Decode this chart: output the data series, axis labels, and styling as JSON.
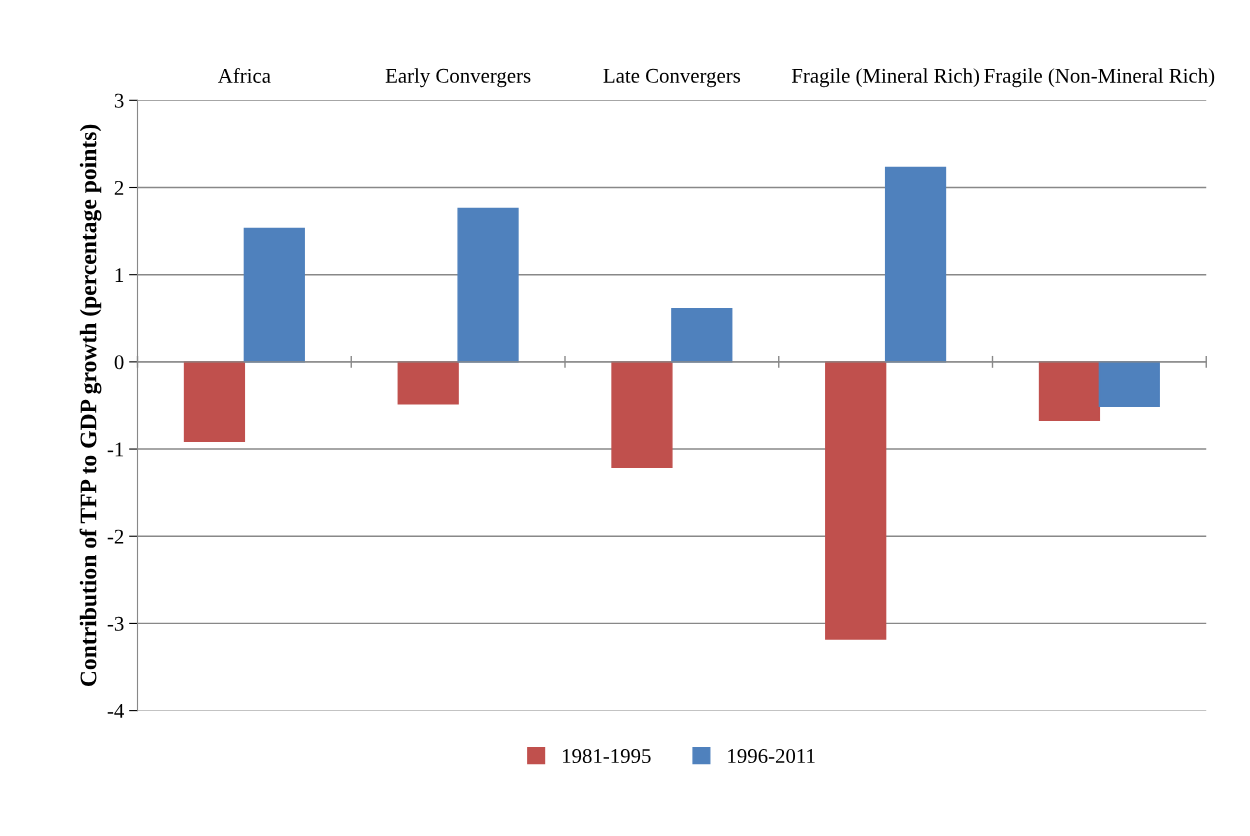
{
  "chart_data": {
    "type": "bar",
    "ylabel": "Contribution of TFP to GDP growth (percentage points)",
    "categories": [
      "Africa",
      "Early Convergers",
      "Late Convergers",
      "Fragile (Mineral Rich)",
      "Fragile (Non-Mineral Rich)"
    ],
    "series": [
      {
        "name": "1981-1995",
        "color": "#c0504d",
        "values": [
          -0.91,
          -0.48,
          -1.21,
          -3.18,
          -0.67
        ]
      },
      {
        "name": "1996-2011",
        "color": "#4f81bd",
        "values": [
          1.53,
          1.76,
          0.61,
          2.23,
          -0.51
        ]
      }
    ],
    "ylim": [
      -4,
      3
    ],
    "yticks": [
      -4,
      -3,
      -2,
      -1,
      0,
      1,
      2,
      3
    ],
    "grid": "y",
    "legend": "bottom"
  }
}
